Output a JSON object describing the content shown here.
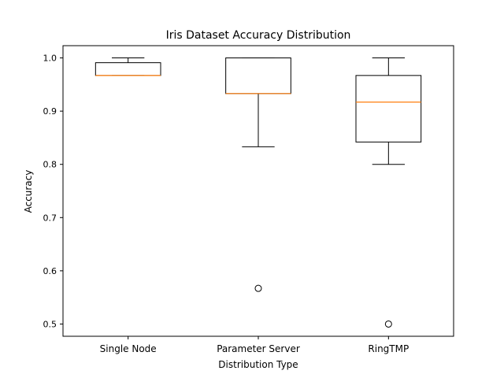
{
  "chart_data": {
    "type": "box",
    "title": "Iris Dataset Accuracy Distribution",
    "xlabel": "Distribution Type",
    "ylabel": "Accuracy",
    "ylim": [
      0.477,
      1.023
    ],
    "yticks": [
      0.5,
      0.6,
      0.7,
      0.8,
      0.9,
      1.0
    ],
    "ytick_labels": [
      "0.5",
      "0.6",
      "0.7",
      "0.8",
      "0.9",
      "1.0"
    ],
    "grid": false,
    "categories": [
      "Single Node",
      "Parameter Server",
      "RingTMP"
    ],
    "boxes": [
      {
        "whisker_low": 0.967,
        "q1": 0.967,
        "median": 0.967,
        "q3": 0.991,
        "whisker_high": 1.0,
        "outliers": []
      },
      {
        "whisker_low": 0.833,
        "q1": 0.933,
        "median": 0.933,
        "q3": 1.0,
        "whisker_high": 1.0,
        "outliers": [
          0.567
        ]
      },
      {
        "whisker_low": 0.8,
        "q1": 0.842,
        "median": 0.917,
        "q3": 0.967,
        "whisker_high": 1.0,
        "outliers": [
          0.5
        ]
      }
    ],
    "colors": {
      "box": "#000000",
      "median": "#ff7f0e",
      "frame": "#000000"
    }
  }
}
